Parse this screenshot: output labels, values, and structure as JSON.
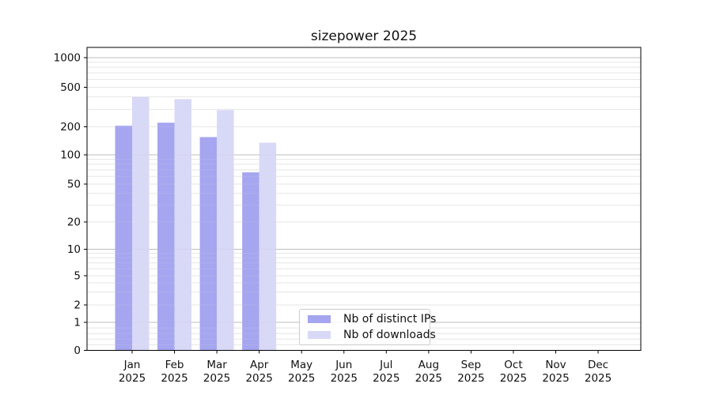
{
  "chart_data": {
    "type": "bar",
    "title": "sizepower 2025",
    "categories": [
      "Jan",
      "Feb",
      "Mar",
      "Apr",
      "May",
      "Jun",
      "Jul",
      "Aug",
      "Sep",
      "Oct",
      "Nov",
      "Dec"
    ],
    "category_year": "2025",
    "series": [
      {
        "name": "Nb of distinct IPs",
        "color": "#a5a5f0",
        "values": [
          205,
          220,
          155,
          66,
          0,
          0,
          0,
          0,
          0,
          0,
          0,
          0
        ]
      },
      {
        "name": "Nb of downloads",
        "color": "#d8d8f7",
        "values": [
          400,
          380,
          295,
          135,
          0,
          0,
          0,
          0,
          0,
          0,
          0,
          0
        ]
      }
    ],
    "yscale": "symlog",
    "yticks": [
      0,
      1,
      2,
      5,
      10,
      20,
      50,
      100,
      200,
      500,
      1000
    ],
    "ylim": [
      0,
      1280
    ],
    "grid": true,
    "legend_position": "lower center inside axes",
    "colors": {
      "major_grid": "#bdbdbd",
      "minor_grid": "#e6e6e6",
      "axis": "#000000",
      "text": "#111111"
    }
  }
}
